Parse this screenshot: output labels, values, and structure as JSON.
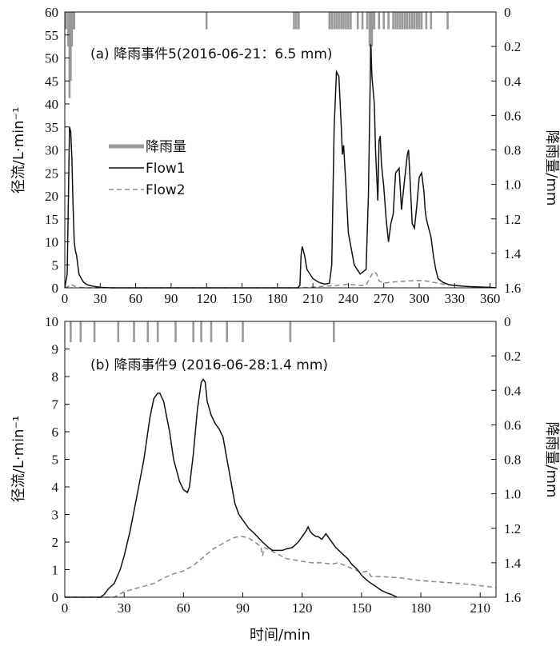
{
  "chart_data": [
    {
      "type": "line",
      "title": "(a) 降雨事件5(2016-06-21：6.5 mm)",
      "xlabel": "",
      "ylabel": "径流/L·min⁻¹",
      "y2label": "降雨量/mm",
      "xlim": [
        0,
        365
      ],
      "ylim": [
        0,
        60
      ],
      "y2lim": [
        0,
        1.6
      ],
      "y2_inverted": true,
      "xticks": [
        0,
        30,
        60,
        90,
        120,
        150,
        180,
        210,
        240,
        270,
        300,
        330,
        360
      ],
      "yticks": [
        0,
        5,
        10,
        15,
        20,
        25,
        30,
        35,
        40,
        45,
        50,
        55,
        60
      ],
      "y2ticks": [
        0,
        0.2,
        0.4,
        0.6,
        0.8,
        1.0,
        1.2,
        1.4,
        1.6
      ],
      "legend": {
        "position": "left",
        "entries": [
          "降雨量",
          "Flow1",
          "Flow2"
        ]
      },
      "colors": {
        "rain": "#999999",
        "flow1": "#111111",
        "flow2": "#888888"
      },
      "series": [
        {
          "name": "Flow1",
          "style": "solid",
          "x": [
            0,
            2,
            4,
            5,
            6,
            7,
            8,
            9,
            10,
            11,
            12,
            14,
            16,
            18,
            20,
            25,
            30,
            40,
            60,
            90,
            120,
            150,
            180,
            195,
            197,
            199,
            200,
            201,
            203,
            205,
            210,
            215,
            220,
            224,
            226,
            228,
            230,
            232,
            234,
            235,
            236,
            238,
            240,
            245,
            250,
            255,
            257,
            259,
            260,
            262,
            263,
            265,
            266,
            267,
            268,
            270,
            272,
            274,
            276,
            278,
            280,
            283,
            285,
            287,
            290,
            291,
            292,
            294,
            296,
            298,
            300,
            302,
            304,
            305,
            306,
            308,
            310,
            312,
            314,
            316,
            320,
            325,
            330,
            340,
            350,
            360,
            365
          ],
          "y": [
            0,
            3,
            35,
            34,
            28,
            18,
            10,
            8,
            7,
            5,
            3,
            2,
            1.2,
            0.8,
            0.6,
            0.3,
            0.1,
            0,
            0,
            0,
            0,
            0,
            0,
            0,
            0,
            0.5,
            7,
            9,
            7,
            4,
            2,
            1.2,
            0.8,
            1,
            5,
            35,
            47,
            46,
            35,
            29,
            31,
            22,
            12,
            5,
            3,
            4,
            20,
            53,
            46,
            40,
            30,
            19,
            32,
            33,
            27,
            22,
            15,
            10,
            14,
            16,
            25,
            26,
            17,
            22,
            29,
            30,
            25,
            14,
            13,
            18,
            24,
            25,
            21,
            17,
            15,
            13,
            11,
            7,
            4,
            2,
            1.2,
            0.7,
            0.5,
            0.3,
            0.2,
            0.1,
            0
          ]
        },
        {
          "name": "Flow2",
          "style": "dashed",
          "x": [
            0,
            3,
            5,
            8,
            12,
            20,
            40,
            100,
            200,
            230,
            240,
            250,
            255,
            258,
            260,
            262,
            264,
            266,
            270,
            275,
            280,
            290,
            300,
            305,
            310,
            320,
            340,
            365
          ],
          "y": [
            0,
            0.3,
            0.8,
            0.4,
            0.1,
            0,
            0,
            0,
            0,
            0.5,
            0.8,
            0.5,
            0.6,
            2,
            3,
            3.5,
            3,
            1.5,
            1,
            1.2,
            1.3,
            1.5,
            1.6,
            1.5,
            1.3,
            0.8,
            0.3,
            0
          ]
        }
      ],
      "rain": {
        "name": "降雨量",
        "x": [
          1,
          3,
          4,
          5,
          6,
          7,
          8,
          120,
          194,
          196,
          198,
          224,
          226,
          228,
          230,
          232,
          234,
          236,
          238,
          240,
          242,
          248,
          252,
          256,
          258,
          259,
          260,
          261,
          262,
          266,
          270,
          274,
          278,
          280,
          282,
          284,
          286,
          288,
          290,
          292,
          294,
          296,
          298,
          300,
          302,
          306,
          310,
          324
        ],
        "y": [
          0.1,
          0.2,
          0.5,
          0.4,
          0.2,
          0.1,
          0.1,
          0.1,
          0.1,
          0.1,
          0.1,
          0.1,
          0.1,
          0.1,
          0.1,
          0.1,
          0.1,
          0.1,
          0.1,
          0.1,
          0.1,
          0.1,
          0.1,
          0.1,
          0.2,
          0.3,
          0.2,
          0.1,
          0.1,
          0.1,
          0.1,
          0.1,
          0.1,
          0.1,
          0.1,
          0.1,
          0.1,
          0.1,
          0.1,
          0.1,
          0.1,
          0.1,
          0.1,
          0.1,
          0.1,
          0.1,
          0.1,
          0.1
        ]
      }
    },
    {
      "type": "line",
      "title": "(b) 降雨事件9 (2016-06-28:1.4 mm)",
      "xlabel": "时间/min",
      "ylabel": "径流/L·min⁻¹",
      "y2label": "降雨量/mm",
      "xlim": [
        0,
        218
      ],
      "ylim": [
        0,
        10
      ],
      "y2lim": [
        0,
        1.6
      ],
      "y2_inverted": true,
      "xticks": [
        0,
        30,
        60,
        90,
        120,
        150,
        180,
        210
      ],
      "yticks": [
        0,
        1,
        2,
        3,
        4,
        5,
        6,
        7,
        8,
        9,
        10
      ],
      "y2ticks": [
        0,
        0.2,
        0.4,
        0.6,
        0.8,
        1.0,
        1.2,
        1.4,
        1.6
      ],
      "colors": {
        "rain": "#999999",
        "flow1": "#111111",
        "flow2": "#888888"
      },
      "series": [
        {
          "name": "Flow1",
          "style": "solid",
          "x": [
            0,
            18,
            20,
            22,
            25,
            28,
            30,
            33,
            36,
            40,
            43,
            45,
            47,
            48,
            50,
            53,
            55,
            58,
            60,
            62,
            63,
            65,
            67,
            69,
            70,
            71,
            72,
            74,
            76,
            78,
            80,
            82,
            84,
            86,
            88,
            90,
            93,
            96,
            100,
            103,
            105,
            108,
            110,
            112,
            115,
            118,
            120,
            122,
            123,
            124,
            125,
            127,
            128,
            130,
            132,
            133,
            135,
            137,
            140,
            143,
            145,
            148,
            150,
            153,
            155,
            158,
            160,
            163,
            165,
            168
          ],
          "y": [
            0,
            0,
            0.1,
            0.3,
            0.5,
            1.0,
            1.5,
            2.4,
            3.5,
            5.0,
            6.5,
            7.2,
            7.4,
            7.4,
            7.1,
            6.0,
            5.0,
            4.2,
            3.9,
            3.8,
            4.0,
            5.2,
            6.8,
            7.8,
            7.9,
            7.8,
            7.1,
            6.6,
            6.3,
            6.1,
            5.8,
            5.0,
            4.2,
            3.4,
            3.0,
            2.8,
            2.5,
            2.3,
            2.0,
            1.8,
            1.7,
            1.7,
            1.7,
            1.75,
            1.8,
            2.0,
            2.2,
            2.4,
            2.55,
            2.4,
            2.3,
            2.2,
            2.2,
            2.1,
            2.3,
            2.2,
            2.0,
            1.8,
            1.6,
            1.4,
            1.2,
            1.0,
            0.8,
            0.6,
            0.5,
            0.35,
            0.25,
            0.15,
            0.1,
            0
          ]
        },
        {
          "name": "Flow2",
          "style": "dashed",
          "x": [
            0,
            25,
            30,
            35,
            40,
            45,
            50,
            55,
            60,
            65,
            70,
            75,
            80,
            85,
            88,
            90,
            93,
            96,
            99,
            100,
            101,
            104,
            108,
            112,
            116,
            120,
            125,
            130,
            135,
            138,
            140,
            145,
            150,
            153,
            155,
            160,
            170,
            180,
            190,
            200,
            210,
            218
          ],
          "y": [
            0,
            0,
            0.2,
            0.3,
            0.4,
            0.5,
            0.7,
            0.85,
            0.95,
            1.15,
            1.45,
            1.75,
            1.95,
            2.15,
            2.2,
            2.2,
            2.15,
            2.0,
            1.85,
            1.5,
            1.8,
            1.7,
            1.55,
            1.4,
            1.35,
            1.3,
            1.25,
            1.25,
            1.2,
            1.25,
            1.2,
            1.05,
            0.9,
            0.95,
            0.75,
            0.75,
            0.7,
            0.6,
            0.55,
            0.5,
            0.42,
            0.35
          ]
        }
      ],
      "rain": {
        "name": "降雨量",
        "x": [
          3,
          8,
          15,
          27,
          35,
          42,
          47,
          56,
          65,
          69,
          74,
          82,
          90,
          114,
          136
        ],
        "y": [
          0.12,
          0.12,
          0.12,
          0.12,
          0.12,
          0.12,
          0.12,
          0.12,
          0.12,
          0.12,
          0.12,
          0.12,
          0.12,
          0.12,
          0.12
        ]
      }
    }
  ]
}
